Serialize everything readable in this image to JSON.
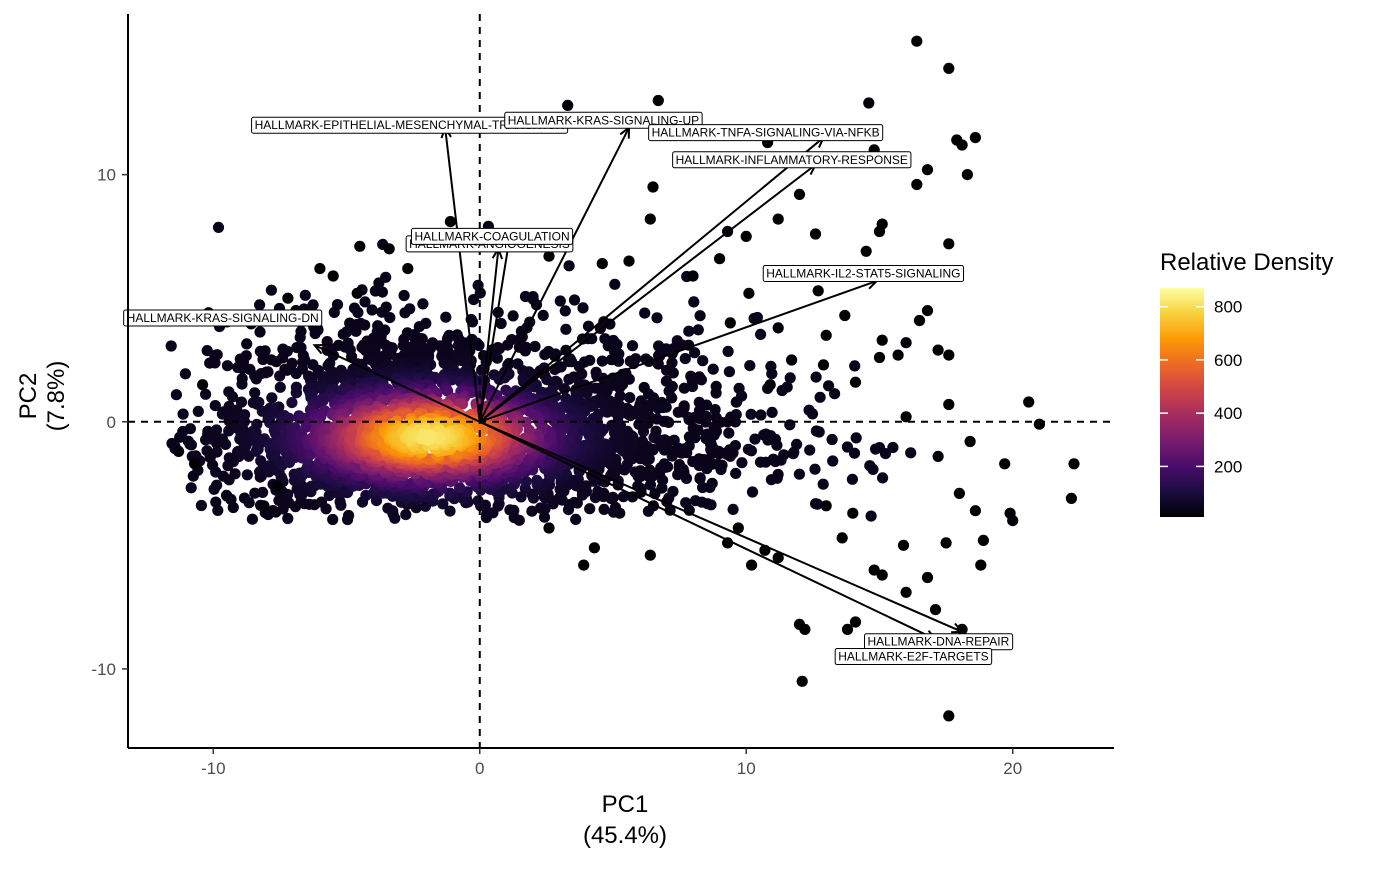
{
  "chart_data": {
    "type": "scatter",
    "title": "",
    "xlabel": "PC1",
    "xlabel_sub": "(45.4%)",
    "ylabel": "PC2",
    "ylabel_sub": "(7.8%)",
    "xlim": [
      -13.2,
      23.8
    ],
    "ylim": [
      -13.2,
      16.5
    ],
    "x_ticks": [
      -10,
      0,
      10,
      20
    ],
    "y_ticks": [
      -10,
      0,
      10
    ],
    "x_tick_labels": [
      "-10",
      "0",
      "10",
      "20"
    ],
    "y_tick_labels": [
      "-10",
      "0",
      "10"
    ],
    "grid": false,
    "reference_lines": {
      "x": 0,
      "y": 0,
      "style": "dashed"
    },
    "density_core": {
      "center_x": -1.9,
      "center_y": -0.6,
      "spread_x": 4.2,
      "spread_y": 1.9,
      "n_points": 2600
    },
    "outlier_points": [
      [
        16.4,
        15.4
      ],
      [
        17.6,
        14.3
      ],
      [
        3.3,
        12.8
      ],
      [
        6.7,
        13.0
      ],
      [
        14.6,
        12.9
      ],
      [
        18.6,
        11.5
      ],
      [
        17.9,
        11.4
      ],
      [
        18.1,
        11.2
      ],
      [
        11.1,
        11.6
      ],
      [
        10.8,
        11.3
      ],
      [
        14.8,
        11.0
      ],
      [
        16.8,
        10.2
      ],
      [
        16.4,
        9.6
      ],
      [
        18.3,
        10.0
      ],
      [
        6.5,
        9.5
      ],
      [
        12.0,
        9.2
      ],
      [
        6.4,
        8.2
      ],
      [
        11.2,
        8.2
      ],
      [
        15.1,
        8.0
      ],
      [
        15.0,
        7.7
      ],
      [
        12.6,
        7.6
      ],
      [
        10.0,
        7.5
      ],
      [
        9.3,
        7.7
      ],
      [
        17.6,
        7.2
      ],
      [
        -4.5,
        7.1
      ],
      [
        -3.4,
        7.0
      ],
      [
        -2.7,
        6.2
      ],
      [
        -5.5,
        5.9
      ],
      [
        -7.2,
        5.0
      ],
      [
        -8.1,
        4.1
      ],
      [
        16.8,
        4.5
      ],
      [
        16.5,
        4.1
      ],
      [
        13.7,
        4.3
      ],
      [
        9.4,
        4.0
      ],
      [
        11.2,
        3.8
      ],
      [
        13.0,
        3.5
      ],
      [
        15.1,
        3.3
      ],
      [
        16.0,
        3.2
      ],
      [
        15.7,
        2.7
      ],
      [
        17.2,
        2.9
      ],
      [
        17.6,
        2.7
      ],
      [
        15.0,
        2.6
      ],
      [
        12.9,
        2.3
      ],
      [
        14.1,
        1.6
      ],
      [
        11.7,
        2.5
      ],
      [
        10.9,
        1.5
      ],
      [
        16.0,
        0.2
      ],
      [
        17.6,
        0.7
      ],
      [
        20.6,
        0.8
      ],
      [
        21.0,
        -0.1
      ],
      [
        22.3,
        -1.7
      ],
      [
        22.2,
        -3.1
      ],
      [
        19.7,
        -1.7
      ],
      [
        18.4,
        -0.8
      ],
      [
        17.2,
        -1.4
      ],
      [
        18.0,
        -2.9
      ],
      [
        18.6,
        -3.6
      ],
      [
        19.9,
        -3.7
      ],
      [
        20.0,
        -4.0
      ],
      [
        18.9,
        -4.8
      ],
      [
        18.8,
        -5.8
      ],
      [
        17.5,
        -4.9
      ],
      [
        15.9,
        -5.0
      ],
      [
        14.8,
        -6.0
      ],
      [
        15.1,
        -6.2
      ],
      [
        16.8,
        -6.3
      ],
      [
        16.0,
        -6.9
      ],
      [
        17.1,
        -7.6
      ],
      [
        18.1,
        -8.4
      ],
      [
        12.2,
        -8.4
      ],
      [
        12.0,
        -8.2
      ],
      [
        13.8,
        -8.4
      ],
      [
        14.1,
        -8.1
      ],
      [
        12.1,
        -10.5
      ],
      [
        17.6,
        -11.9
      ],
      [
        10.2,
        -5.8
      ],
      [
        9.3,
        -4.9
      ],
      [
        6.4,
        -5.4
      ],
      [
        4.3,
        -5.1
      ],
      [
        3.9,
        -5.8
      ],
      [
        2.6,
        -4.3
      ],
      [
        13.0,
        -3.4
      ],
      [
        13.6,
        -4.7
      ],
      [
        14.0,
        -3.7
      ],
      [
        10.7,
        -5.2
      ],
      [
        11.2,
        -5.5
      ],
      [
        9.7,
        -4.3
      ],
      [
        -8.1,
        -3.4
      ],
      [
        -7.6,
        -2.6
      ],
      [
        -10.7,
        -1.7
      ],
      [
        -11.3,
        -1.2
      ],
      [
        -10.4,
        1.5
      ],
      [
        -6.0,
        6.2
      ],
      [
        -6.9,
        4.5
      ],
      [
        -4.6,
        5.2
      ],
      [
        -1.1,
        8.1
      ],
      [
        0.9,
        7.2
      ],
      [
        2.6,
        6.7
      ],
      [
        4.6,
        6.4
      ],
      [
        5.6,
        6.5
      ],
      [
        8.0,
        5.9
      ],
      [
        10.1,
        5.2
      ],
      [
        12.7,
        5.3
      ],
      [
        13.7,
        5.9
      ],
      [
        14.5,
        6.9
      ],
      [
        9.0,
        6.6
      ],
      [
        11.9,
        6.0
      ]
    ],
    "loading_vectors": [
      {
        "label": "HALLMARK-EPITHELIAL-MESENCHYMAL-TRANSITION",
        "x": -1.3,
        "y": 11.9
      },
      {
        "label": "HALLMARK-KRAS-SIGNALING-UP",
        "x": 5.6,
        "y": 11.9
      },
      {
        "label": "HALLMARK-TNFA-SIGNALING-VIA-NFKB",
        "x": 12.9,
        "y": 11.5
      },
      {
        "label": "HALLMARK-INFLAMMATORY-RESPONSE",
        "x": 12.6,
        "y": 10.4
      },
      {
        "label": "HALLMARK-COAGULATION",
        "x": 1.1,
        "y": 7.3
      },
      {
        "label": "HALLMARK-ANGIOGENESIS",
        "x": 0.7,
        "y": 7.0
      },
      {
        "label": "HALLMARK-IL2-STAT5-SIGNALING",
        "x": 14.9,
        "y": 5.7
      },
      {
        "label": "HALLMARK-KRAS-SIGNALING-DN",
        "x": -6.2,
        "y": 3.1
      },
      {
        "label": "HALLMARK-DNA-REPAIR",
        "x": 18.1,
        "y": -8.5
      },
      {
        "label": "HALLMARK-E2F-TARGETS",
        "x": 17.1,
        "y": -8.8
      }
    ],
    "vector_labels": [
      {
        "text": "HALLMARK-EPITHELIAL-MESENCHYMAL-TRANSITION",
        "x": -8.6,
        "y": 12.0
      },
      {
        "text": "HALLMARK-KRAS-SIGNALING-UP",
        "x": 0.9,
        "y": 12.2
      },
      {
        "text": "HALLMARK-TNFA-SIGNALING-VIA-NFKB",
        "x": 6.3,
        "y": 11.7
      },
      {
        "text": "HALLMARK-INFLAMMATORY-RESPONSE",
        "x": 7.2,
        "y": 10.6
      },
      {
        "text": "HALLMARK-ANGIOGENESIS",
        "x": -2.8,
        "y": 7.2
      },
      {
        "text": "HALLMARK-COAGULATION",
        "x": -2.6,
        "y": 7.5
      },
      {
        "text": "HALLMARK-IL2-STAT5-SIGNALING",
        "x": 10.6,
        "y": 6.0
      },
      {
        "text": "HALLMARK-KRAS-SIGNALING-DN",
        "x": -13.4,
        "y": 4.2
      },
      {
        "text": "HALLMARK-DNA-REPAIR",
        "x": 14.4,
        "y": -8.9
      },
      {
        "text": "HALLMARK-E2F-TARGETS",
        "x": 13.3,
        "y": -9.5
      }
    ],
    "legend": {
      "title": "Relative Density",
      "placement": "right",
      "min": 10,
      "max": 870,
      "ticks": [
        200,
        400,
        600,
        800
      ],
      "tick_labels": [
        "200",
        "400",
        "600",
        "800"
      ],
      "palette": [
        "#000004",
        "#1b0c41",
        "#4a0c6b",
        "#781c6d",
        "#a52c60",
        "#cf4446",
        "#ed6925",
        "#fb9b06",
        "#f7d13d",
        "#fcffa4"
      ]
    }
  }
}
